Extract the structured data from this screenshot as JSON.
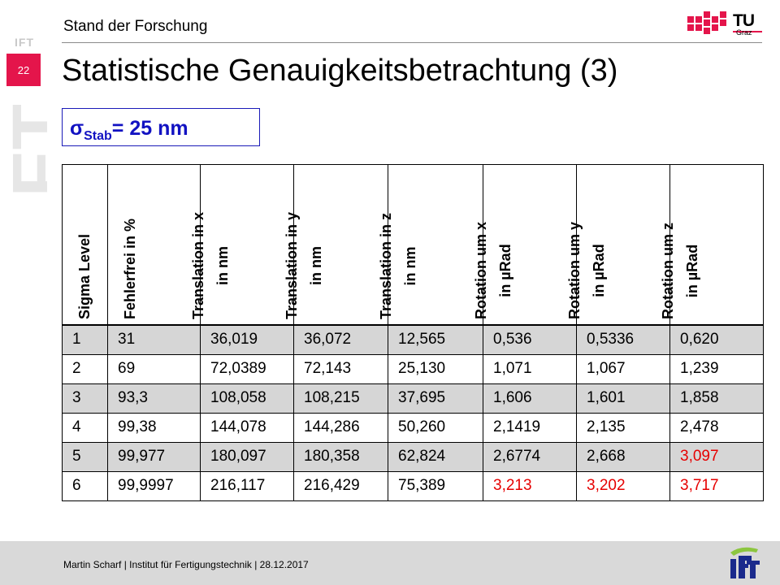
{
  "sidebar": {
    "watermark": "IFT",
    "top_label": "IFT",
    "slide_number": "22"
  },
  "header": {
    "section": "Stand der Forschung",
    "logo_text": "TU",
    "logo_subtext": "Graz"
  },
  "title": "Statistische Genauigkeitsbetrachtung (3)",
  "sigma_box": {
    "symbol": "σ",
    "subscript": "Stab",
    "value": "= 25 nm"
  },
  "table": {
    "headers": [
      [
        "Sigma Level"
      ],
      [
        "Fehlerfrei in %"
      ],
      [
        "Translation in x",
        "in nm"
      ],
      [
        "Translation in y",
        "in nm"
      ],
      [
        "Translation in z",
        "in nm"
      ],
      [
        "Rotation um x",
        "in µRad"
      ],
      [
        "Rotation um y",
        "in µRad"
      ],
      [
        "Rotation um z",
        "in µRad"
      ]
    ],
    "rows": [
      [
        "1",
        "31",
        "36,019",
        "36,072",
        "12,565",
        "0,536",
        "0,5336",
        "0,620"
      ],
      [
        "2",
        "69",
        "72,0389",
        "72,143",
        "25,130",
        "1,071",
        "1,067",
        "1,239"
      ],
      [
        "3",
        "93,3",
        "108,058",
        "108,215",
        "37,695",
        "1,606",
        "1,601",
        "1,858"
      ],
      [
        "4",
        "99,38",
        "144,078",
        "144,286",
        "50,260",
        "2,1419",
        "2,135",
        "2,478"
      ],
      [
        "5",
        "99,977",
        "180,097",
        "180,358",
        "62,824",
        "2,6774",
        "2,668",
        "3,097"
      ],
      [
        "6",
        "99,9997",
        "216,117",
        "216,429",
        "75,389",
        "3,213",
        "3,202",
        "3,717"
      ]
    ],
    "colors": {
      "shade": "#d6d6d6",
      "highlight": "#e60000"
    }
  },
  "footer": {
    "text": "Martin Scharf | Institut für Fertigungstechnik | 28.12.2017",
    "logo_text": "IFT"
  }
}
